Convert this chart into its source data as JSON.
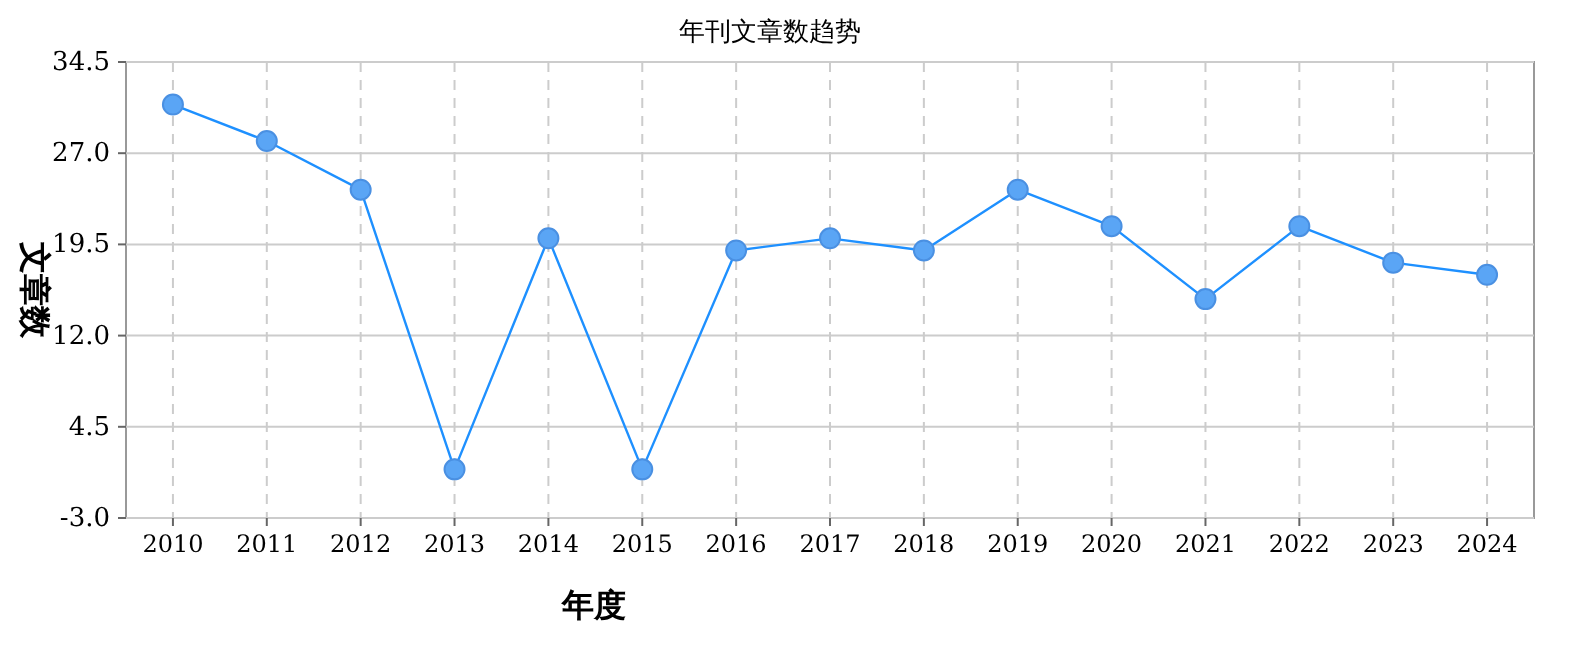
{
  "chart_data": {
    "type": "line",
    "title": "年刊文章数趋势",
    "xlabel": "年度",
    "ylabel": "文章数",
    "categories": [
      "2010",
      "2011",
      "2012",
      "2013",
      "2014",
      "2015",
      "2016",
      "2017",
      "2018",
      "2019",
      "2020",
      "2021",
      "2022",
      "2023",
      "2024"
    ],
    "series": [
      {
        "color": "#1e90ff",
        "values": [
          31,
          28,
          24,
          1,
          20,
          1,
          19,
          20,
          19,
          24,
          21,
          15,
          21,
          18,
          17
        ]
      }
    ],
    "ylim": [
      -3,
      34.5
    ],
    "yticks": [
      {
        "value": -3,
        "label": "-3.0"
      },
      {
        "value": 4.5,
        "label": "4.5"
      },
      {
        "value": 12,
        "label": "12.0"
      },
      {
        "value": 19.5,
        "label": "19.5"
      },
      {
        "value": 27,
        "label": "27.0"
      },
      {
        "value": 34.5,
        "label": "34.5"
      }
    ],
    "grid": true,
    "marker": "circle",
    "line_style": "solid"
  }
}
